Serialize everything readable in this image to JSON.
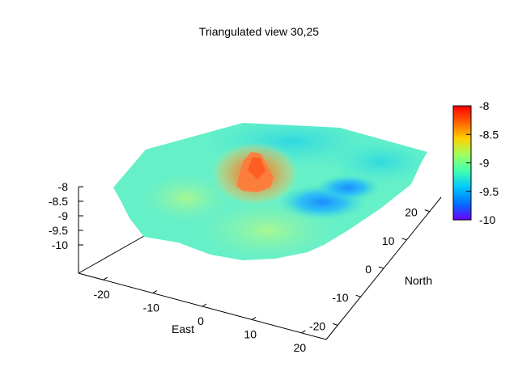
{
  "chart_data": {
    "type": "surface3d",
    "title": "Triangulated view 30,25",
    "xlabel": "East",
    "ylabel": "North",
    "zlabel": "",
    "view": {
      "rot_x": 30,
      "rot_z": 25
    },
    "x_ticks": [
      -20,
      -10,
      0,
      10,
      20
    ],
    "y_ticks": [
      -20,
      -10,
      0,
      10,
      20
    ],
    "z_ticks": [
      -8,
      -8.5,
      -9,
      -9.5,
      -10
    ],
    "xlim": [
      -25,
      25
    ],
    "ylim": [
      -25,
      25
    ],
    "zlim": [
      -10,
      -8
    ],
    "colorbar": {
      "ticks": [
        -8,
        -8.5,
        -9,
        -9.5,
        -10
      ],
      "range": [
        -10,
        -8
      ],
      "palette": "rainbow",
      "colors": [
        "#6a00ff",
        "#0070ff",
        "#00c8ff",
        "#40ffb0",
        "#a0ff60",
        "#ffd000",
        "#ff6000",
        "#ff0000"
      ]
    },
    "surface_summary": {
      "base_level": -9.0,
      "peak": {
        "x": -5,
        "y": 5,
        "z": -8.2
      },
      "depression": {
        "x": 15,
        "y": -5,
        "z": -9.5
      }
    }
  }
}
